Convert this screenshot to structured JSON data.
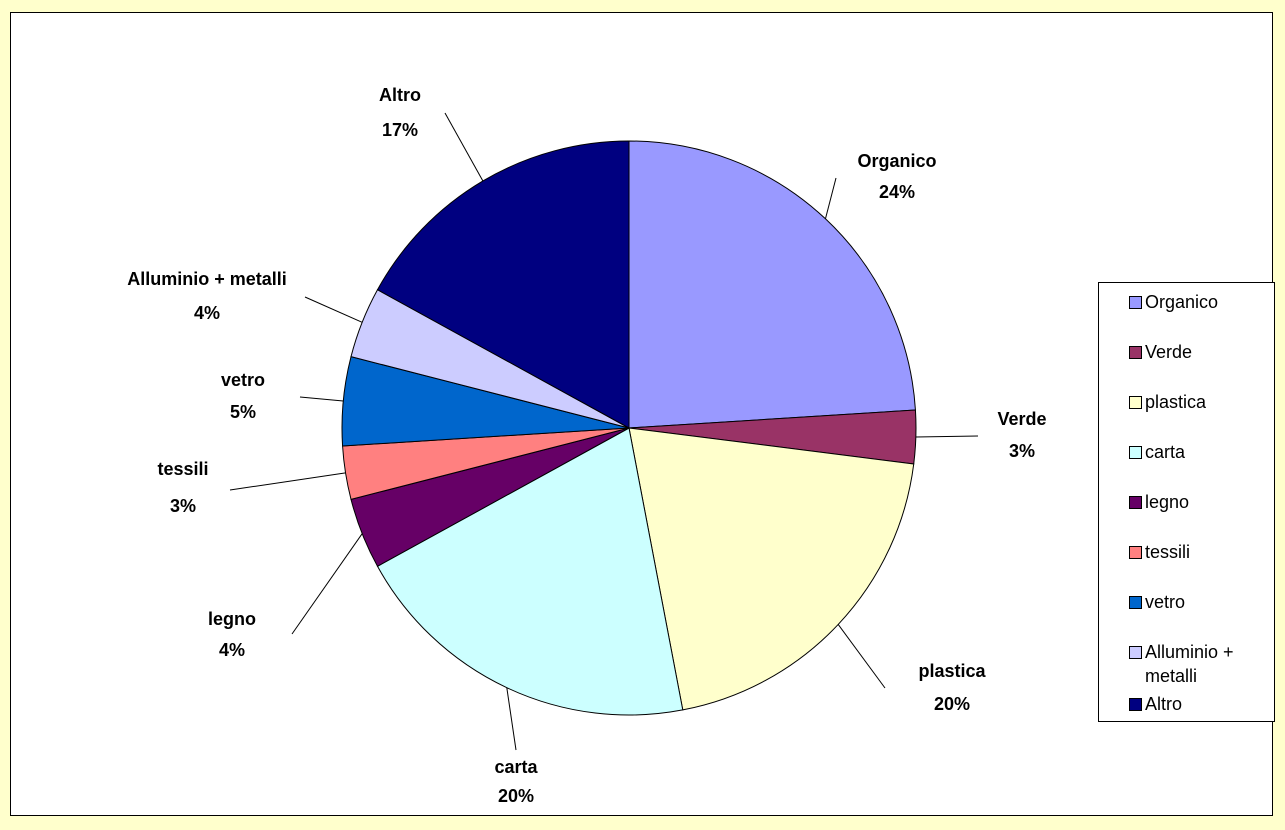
{
  "chart_data": {
    "type": "pie",
    "categories": [
      "Organico",
      "Verde",
      "plastica",
      "carta",
      "legno",
      "tessili",
      "vetro",
      "Alluminio + metalli",
      "Altro"
    ],
    "values": [
      24,
      3,
      20,
      20,
      4,
      3,
      5,
      4,
      17
    ],
    "value_labels": [
      "24%",
      "3%",
      "20%",
      "20%",
      "4%",
      "3%",
      "5%",
      "4%",
      "17%"
    ],
    "colors": [
      "#9999ff",
      "#993366",
      "#ffffcc",
      "#ccffff",
      "#660066",
      "#ff8080",
      "#0066cc",
      "#ccccff",
      "#000080"
    ],
    "legend": "right"
  }
}
